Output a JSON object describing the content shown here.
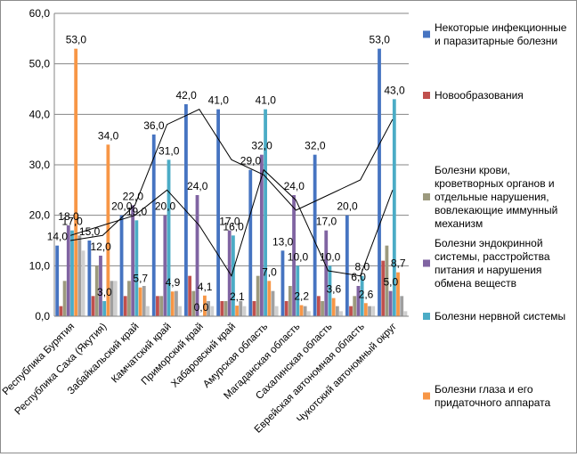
{
  "chart_data": {
    "type": "bar",
    "title": "",
    "xlabel": "",
    "ylabel": "",
    "ylim": [
      0,
      60
    ],
    "yticks": [
      "0,0",
      "10,0",
      "20,0",
      "30,0",
      "40,0",
      "50,0",
      "60,0"
    ],
    "grid": true,
    "legend_position": "right",
    "categories": [
      "Республика Бурятия",
      "Республика Саха (Якутия)",
      "Забайкальский край",
      "Камчатский край",
      "Приморский край",
      "Хабаровский край",
      "Амурская область",
      "Магаданская область",
      "Сахалинская область",
      "Еврейская автономная область",
      "Чукотский автономный округ"
    ],
    "series": [
      {
        "name": "Некоторые инфекционные  и паразитарные болезни",
        "color": "#4674c1",
        "values": [
          14,
          15,
          20,
          36,
          42,
          41,
          29,
          13,
          32,
          20,
          53
        ]
      },
      {
        "name": "Новообразования",
        "color": "#c0504d",
        "values": [
          2,
          4,
          4,
          4,
          8,
          3,
          3,
          3,
          4,
          2,
          11
        ]
      },
      {
        "name": "Болезни крови, кроветворных органов и отдельные  нарушения, вовлекающие  иммунный механизм",
        "color": "#9c9a7e",
        "values": [
          7,
          10,
          7,
          4,
          5,
          3,
          8,
          6,
          3,
          4,
          14
        ]
      },
      {
        "name": "Болезни эндокринной системы, расстройства питания и нарушения обмена веществ",
        "color": "#8064a2",
        "values": [
          18,
          12,
          22,
          20,
          24,
          17,
          32,
          24,
          17,
          6,
          5
        ]
      },
      {
        "name": "Болезни нервной системы",
        "color": "#4bacc6",
        "values": [
          17,
          3,
          19,
          31,
          0,
          16,
          41,
          10,
          10,
          8,
          43
        ]
      },
      {
        "name": "Болезни глаза и его придаточного аппарата",
        "color": "#f79646",
        "values": [
          53,
          34,
          5.7,
          4.9,
          4.1,
          2.1,
          7,
          2.2,
          3.6,
          2.6,
          8.7
        ]
      }
    ],
    "extra_bars": {
      "colors": [
        "#a0a0a0",
        "#cfcfcf"
      ],
      "values": [
        [
          16,
          13
        ],
        [
          7,
          7
        ],
        [
          6,
          2
        ],
        [
          5,
          2
        ],
        [
          3,
          2
        ],
        [
          3,
          2
        ],
        [
          5,
          2
        ],
        [
          2,
          1
        ],
        [
          2,
          1
        ],
        [
          2,
          2
        ],
        [
          4,
          1
        ]
      ]
    },
    "data_labels": [
      {
        "cat": 0,
        "s": 0,
        "text": "14,0"
      },
      {
        "cat": 0,
        "s": 3,
        "text": "18,0"
      },
      {
        "cat": 0,
        "s": 4,
        "text": "17,0"
      },
      {
        "cat": 0,
        "s": 5,
        "text": "53,0"
      },
      {
        "cat": 1,
        "s": 0,
        "text": "15,0"
      },
      {
        "cat": 1,
        "s": 3,
        "text": "12,0"
      },
      {
        "cat": 1,
        "s": 4,
        "text": "3,0"
      },
      {
        "cat": 1,
        "s": 5,
        "text": "34,0"
      },
      {
        "cat": 2,
        "s": 0,
        "text": "20,0"
      },
      {
        "cat": 2,
        "s": 3,
        "text": "22,0"
      },
      {
        "cat": 2,
        "s": 4,
        "text": "19,0"
      },
      {
        "cat": 2,
        "s": 5,
        "text": "5,7"
      },
      {
        "cat": 3,
        "s": 0,
        "text": "36,0"
      },
      {
        "cat": 3,
        "s": 3,
        "text": "20,0"
      },
      {
        "cat": 3,
        "s": 4,
        "text": "31,0"
      },
      {
        "cat": 3,
        "s": 5,
        "text": "4,9"
      },
      {
        "cat": 4,
        "s": 0,
        "text": "42,0"
      },
      {
        "cat": 4,
        "s": 3,
        "text": "24,0"
      },
      {
        "cat": 4,
        "s": 4,
        "text": "0,0"
      },
      {
        "cat": 4,
        "s": 5,
        "text": "4,1"
      },
      {
        "cat": 5,
        "s": 0,
        "text": "41,0"
      },
      {
        "cat": 5,
        "s": 3,
        "text": "17,0"
      },
      {
        "cat": 5,
        "s": 4,
        "text": "16,0"
      },
      {
        "cat": 5,
        "s": 5,
        "text": "2,1"
      },
      {
        "cat": 6,
        "s": 0,
        "text": "29,0"
      },
      {
        "cat": 6,
        "s": 3,
        "text": "32,0"
      },
      {
        "cat": 6,
        "s": 4,
        "text": "41,0"
      },
      {
        "cat": 6,
        "s": 5,
        "text": "7,0"
      },
      {
        "cat": 7,
        "s": 0,
        "text": "13,0"
      },
      {
        "cat": 7,
        "s": 3,
        "text": "24,0"
      },
      {
        "cat": 7,
        "s": 4,
        "text": "10,0"
      },
      {
        "cat": 7,
        "s": 5,
        "text": "2,2"
      },
      {
        "cat": 8,
        "s": 0,
        "text": "32,0"
      },
      {
        "cat": 8,
        "s": 3,
        "text": "17,0"
      },
      {
        "cat": 8,
        "s": 4,
        "text": "10,0"
      },
      {
        "cat": 8,
        "s": 5,
        "text": "3,6"
      },
      {
        "cat": 9,
        "s": 0,
        "text": "20,0"
      },
      {
        "cat": 9,
        "s": 3,
        "text": "6,0"
      },
      {
        "cat": 9,
        "s": 4,
        "text": "8,0"
      },
      {
        "cat": 9,
        "s": 5,
        "text": "2,6"
      },
      {
        "cat": 10,
        "s": 0,
        "text": "53,0"
      },
      {
        "cat": 10,
        "s": 3,
        "text": "5,0"
      },
      {
        "cat": 10,
        "s": 4,
        "text": "43,0"
      },
      {
        "cat": 10,
        "s": 5,
        "text": "8,7"
      }
    ],
    "trendlines": [
      {
        "color": "#000000",
        "values": [
          15,
          16,
          22,
          38,
          41,
          31,
          28,
          21,
          24,
          27,
          39
        ]
      },
      {
        "color": "#000000",
        "values": [
          16,
          18,
          20,
          25,
          18,
          8,
          29,
          23,
          9,
          8,
          25
        ]
      }
    ]
  }
}
